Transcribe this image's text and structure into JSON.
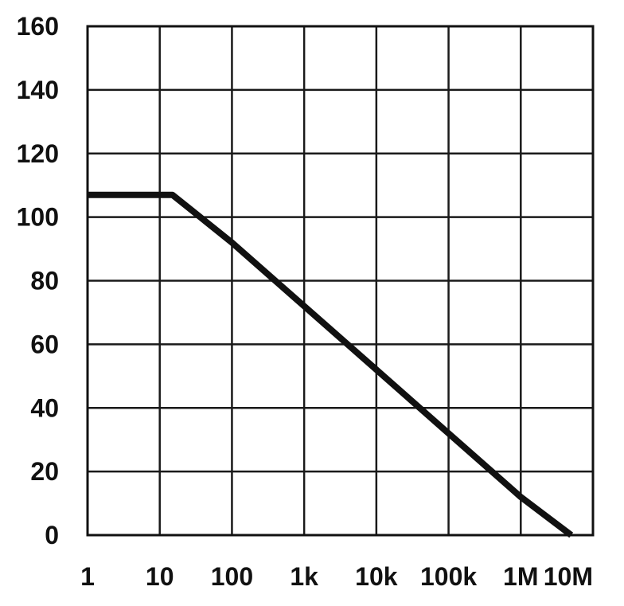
{
  "chart_data": {
    "type": "line",
    "title": "",
    "xlabel": "",
    "ylabel": "",
    "x_scale": "log",
    "x_ticks": [
      1,
      10,
      100,
      1000,
      10000,
      100000,
      1000000,
      10000000
    ],
    "x_tick_labels": [
      "1",
      "10",
      "100",
      "1k",
      "10k",
      "100k",
      "1M",
      "10M"
    ],
    "xlim": [
      1,
      10000000
    ],
    "y_ticks": [
      0,
      20,
      40,
      60,
      80,
      100,
      120,
      140,
      160
    ],
    "y_tick_labels": [
      "0",
      "20",
      "40",
      "60",
      "80",
      "100",
      "120",
      "140",
      "160"
    ],
    "ylim": [
      0,
      160
    ],
    "grid": true,
    "series": [
      {
        "x": [
          1,
          10,
          15,
          100,
          1000,
          10000,
          100000,
          1000000,
          5000000
        ],
        "y": [
          107,
          107,
          107,
          92,
          72,
          52,
          32,
          12,
          0
        ]
      }
    ],
    "line_color": "#111111"
  }
}
